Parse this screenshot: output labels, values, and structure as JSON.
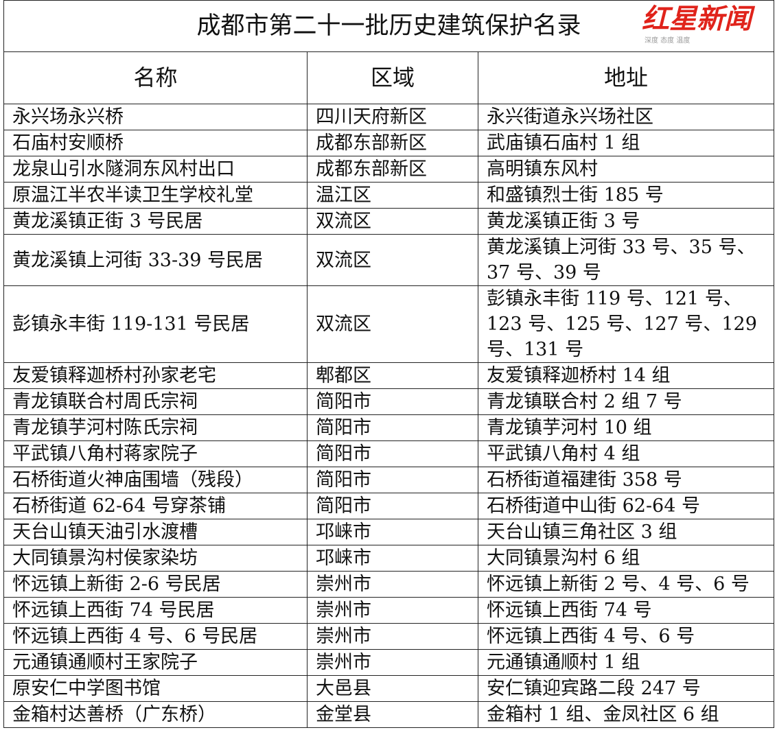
{
  "title": "成都市第二十一批历史建筑保护名录",
  "headers": [
    "名称",
    "区域",
    "地址"
  ],
  "rows": [
    [
      "永兴场永兴桥",
      "四川天府新区",
      "永兴街道永兴场社区"
    ],
    [
      "石庙村安顺桥",
      "成都东部新区",
      "武庙镇石庙村 1 组"
    ],
    [
      "龙泉山引水隧洞东风村出口",
      "成都东部新区",
      "高明镇东风村"
    ],
    [
      "原温江半农半读卫生学校礼堂",
      "温江区",
      "和盛镇烈士街 185 号"
    ],
    [
      "黄龙溪镇正街 3 号民居",
      "双流区",
      "黄龙溪镇正街 3 号"
    ],
    [
      "黄龙溪镇上河街 33-39 号民居",
      "双流区",
      "黄龙溪镇上河街 33 号、35 号、37 号、39 号"
    ],
    [
      "彭镇永丰街 119-131 号民居",
      "双流区",
      "彭镇永丰街 119 号、121 号、123 号、125 号、127 号、129 号、131 号"
    ],
    [
      "友爱镇释迦桥村孙家老宅",
      "郫都区",
      "友爱镇释迦桥村 14 组"
    ],
    [
      "青龙镇联合村周氏宗祠",
      "简阳市",
      "青龙镇联合村 2 组 7 号"
    ],
    [
      "青龙镇芋河村陈氏宗祠",
      "简阳市",
      "青龙镇芋河村 10 组"
    ],
    [
      "平武镇八角村蒋家院子",
      "简阳市",
      "平武镇八角村 4 组"
    ],
    [
      "石桥街道火神庙围墙（残段）",
      "简阳市",
      "石桥街道福建街 358 号"
    ],
    [
      "石桥街道 62-64 号穿茶铺",
      "简阳市",
      "石桥街道中山街 62-64 号"
    ],
    [
      "天台山镇天油引水渡槽",
      "邛崃市",
      "天台山镇三角社区 3 组"
    ],
    [
      "大同镇景沟村侯家染坊",
      "邛崃市",
      "大同镇景沟村 6 组"
    ],
    [
      "怀远镇上新街 2-6 号民居",
      "崇州市",
      "怀远镇上新街 2 号、4 号、6 号"
    ],
    [
      "怀远镇上西街 74 号民居",
      "崇州市",
      "怀远镇上西街 74 号"
    ],
    [
      "怀远镇上西街 4 号、6 号民居",
      "崇州市",
      "怀远镇上西街 4 号、6 号"
    ],
    [
      "元通镇通顺村王家院子",
      "崇州市",
      "元通镇通顺村 1 组"
    ],
    [
      "原安仁中学图书馆",
      "大邑县",
      "安仁镇迎宾路二段 247 号"
    ],
    [
      "金箱村达善桥（广东桥）",
      "金堂县",
      "金箱村 1 组、金凤社区 6 组"
    ]
  ],
  "watermark": {
    "logo": "红星新闻",
    "slogan": "深度 态度 温度",
    "color": "#e0231b"
  }
}
